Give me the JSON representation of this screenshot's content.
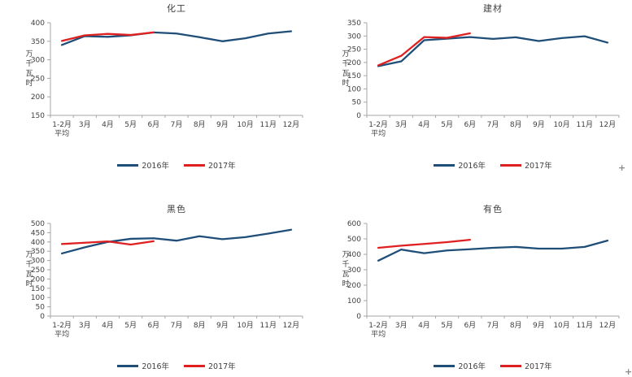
{
  "page": {
    "background": "#FFFFFF"
  },
  "colors": {
    "series_2016": "#1F4E79",
    "series_2017": "#E02020",
    "axis": "#A6A6A6",
    "text": "#404040"
  },
  "artifacts": {
    "cell_cursor": "+",
    "cell_cursor_corner": "+"
  },
  "chart_data": [
    {
      "type": "line",
      "title": "化工",
      "ylabel": "万千瓦时",
      "xlabel": "",
      "categories": [
        [
          "1-2月",
          "平均"
        ],
        [
          "3月"
        ],
        [
          "4月"
        ],
        [
          "5月"
        ],
        [
          "6月"
        ],
        [
          "7月"
        ],
        [
          "8月"
        ],
        [
          "9月"
        ],
        [
          "10月"
        ],
        [
          "11月"
        ],
        [
          "12月"
        ]
      ],
      "ylim": [
        150,
        400
      ],
      "y_ticks": [
        150,
        200,
        250,
        300,
        350,
        400
      ],
      "grid": false,
      "legend_position": "bottom",
      "series": [
        {
          "name": "2016年",
          "color": "#1F4E79",
          "values": [
            340,
            364,
            362,
            366,
            374,
            371,
            361,
            350,
            358,
            371,
            377
          ]
        },
        {
          "name": "2017年",
          "color": "#E02020",
          "values": [
            351,
            366,
            370,
            367,
            374
          ]
        }
      ]
    },
    {
      "type": "line",
      "title": "建材",
      "ylabel": "万千瓦时",
      "xlabel": "",
      "categories": [
        [
          "1-2月",
          "平均"
        ],
        [
          "3月"
        ],
        [
          "4月"
        ],
        [
          "5月"
        ],
        [
          "6月"
        ],
        [
          "7月"
        ],
        [
          "8月"
        ],
        [
          "9月"
        ],
        [
          "10月"
        ],
        [
          "11月"
        ],
        [
          "12月"
        ]
      ],
      "ylim": [
        0,
        350
      ],
      "y_ticks": [
        0,
        50,
        100,
        150,
        200,
        250,
        300,
        350
      ],
      "grid": false,
      "legend_position": "bottom",
      "series": [
        {
          "name": "2016年",
          "color": "#1F4E79",
          "values": [
            186,
            204,
            284,
            290,
            296,
            289,
            295,
            281,
            292,
            299,
            275
          ]
        },
        {
          "name": "2017年",
          "color": "#E02020",
          "values": [
            189,
            225,
            296,
            293,
            310
          ]
        }
      ]
    },
    {
      "type": "line",
      "title": "黑色",
      "ylabel": "万千瓦时",
      "xlabel": "",
      "categories": [
        [
          "1-2月",
          "平均"
        ],
        [
          "3月"
        ],
        [
          "4月"
        ],
        [
          "5月"
        ],
        [
          "6月"
        ],
        [
          "7月"
        ],
        [
          "8月"
        ],
        [
          "9月"
        ],
        [
          "10月"
        ],
        [
          "11月"
        ],
        [
          "12月"
        ]
      ],
      "ylim": [
        0,
        500
      ],
      "y_ticks": [
        0,
        50,
        100,
        150,
        200,
        250,
        300,
        350,
        400,
        450,
        500
      ],
      "grid": false,
      "legend_position": "bottom",
      "series": [
        {
          "name": "2016年",
          "color": "#1F4E79",
          "values": [
            338,
            371,
            400,
            417,
            420,
            407,
            431,
            415,
            426,
            445,
            466
          ]
        },
        {
          "name": "2017年",
          "color": "#E02020",
          "values": [
            389,
            396,
            403,
            386,
            404
          ]
        }
      ]
    },
    {
      "type": "line",
      "title": "有色",
      "ylabel": "万千瓦时",
      "xlabel": "",
      "categories": [
        [
          "1-2月",
          "平均"
        ],
        [
          "3月"
        ],
        [
          "4月"
        ],
        [
          "5月"
        ],
        [
          "6月"
        ],
        [
          "7月"
        ],
        [
          "8月"
        ],
        [
          "9月"
        ],
        [
          "10月"
        ],
        [
          "11月"
        ],
        [
          "12月"
        ]
      ],
      "ylim": [
        0,
        600
      ],
      "y_ticks": [
        0,
        100,
        200,
        300,
        400,
        500,
        600
      ],
      "grid": false,
      "legend_position": "bottom",
      "series": [
        {
          "name": "2016年",
          "color": "#1F4E79",
          "values": [
            359,
            431,
            407,
            425,
            433,
            442,
            448,
            437,
            437,
            448,
            489
          ]
        },
        {
          "name": "2017年",
          "color": "#E02020",
          "values": [
            442,
            456,
            467,
            479,
            494
          ]
        }
      ]
    }
  ]
}
